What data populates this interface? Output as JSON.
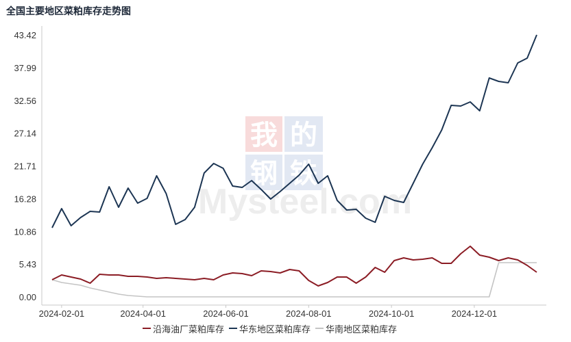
{
  "chart_data": {
    "type": "line",
    "title": "全国主要地区菜粕库存走势图",
    "xlabel": "",
    "ylabel": "",
    "ylim": [
      0,
      43.42
    ],
    "y_ticks": [
      "43.42",
      "37.99",
      "32.56",
      "27.14",
      "21.71",
      "16.28",
      "10.86",
      "5.43",
      "0.00"
    ],
    "x_tick_labels": [
      "2024-02-01",
      "2024-04-01",
      "2024-06-01",
      "2024-08-01",
      "2024-10-01",
      "2024-12-01"
    ],
    "grid": false,
    "legend_position": "bottom",
    "x": [
      "2024-01-25",
      "2024-02-01",
      "2024-02-08",
      "2024-02-15",
      "2024-02-22",
      "2024-02-29",
      "2024-03-07",
      "2024-03-14",
      "2024-03-21",
      "2024-03-28",
      "2024-04-04",
      "2024-04-11",
      "2024-04-18",
      "2024-04-25",
      "2024-05-02",
      "2024-05-09",
      "2024-05-16",
      "2024-05-23",
      "2024-05-30",
      "2024-06-06",
      "2024-06-13",
      "2024-06-20",
      "2024-06-27",
      "2024-07-04",
      "2024-07-11",
      "2024-07-18",
      "2024-07-25",
      "2024-08-01",
      "2024-08-08",
      "2024-08-15",
      "2024-08-22",
      "2024-08-29",
      "2024-09-05",
      "2024-09-12",
      "2024-09-19",
      "2024-09-26",
      "2024-10-03",
      "2024-10-10",
      "2024-10-17",
      "2024-10-24",
      "2024-10-31",
      "2024-11-07",
      "2024-11-14",
      "2024-11-21",
      "2024-11-28",
      "2024-12-05",
      "2024-12-12",
      "2024-12-19",
      "2024-12-26",
      "2025-01-02",
      "2025-01-09",
      "2025-01-16"
    ],
    "series": [
      {
        "name": "沿海油厂菜粕库存",
        "color": "#8b1c24",
        "values": [
          2.83,
          3.63,
          3.29,
          2.95,
          2.27,
          3.74,
          3.63,
          3.63,
          3.4,
          3.4,
          3.29,
          3.06,
          3.17,
          3.06,
          2.95,
          2.83,
          3.06,
          2.83,
          3.63,
          3.97,
          3.85,
          3.51,
          4.31,
          4.19,
          3.97,
          4.53,
          4.31,
          2.72,
          1.81,
          2.38,
          3.29,
          3.29,
          2.27,
          3.29,
          4.87,
          4.08,
          6.01,
          6.46,
          6.12,
          6.24,
          6.46,
          5.55,
          5.55,
          7.14,
          8.39,
          6.92,
          6.58,
          6.01,
          6.46,
          6.12,
          5.21,
          4.08
        ]
      },
      {
        "name": "华东地区菜粕库存",
        "color": "#1c3553",
        "values": [
          11.45,
          14.62,
          11.79,
          13.15,
          14.17,
          14.06,
          18.25,
          14.85,
          18.03,
          15.53,
          16.32,
          20.07,
          17.12,
          12.02,
          12.81,
          14.85,
          20.52,
          22.11,
          21.31,
          18.37,
          18.14,
          19.27,
          17.8,
          16.21,
          17.46,
          18.82,
          20.18,
          21.99,
          18.82,
          20.07,
          15.98,
          14.4,
          14.51,
          13.04,
          12.36,
          16.66,
          15.98,
          15.64,
          18.82,
          21.99,
          24.71,
          27.66,
          31.74,
          31.63,
          32.31,
          30.84,
          36.28,
          35.71,
          35.48,
          38.77,
          39.56,
          43.42
        ]
      },
      {
        "name": "华南地区菜粕库存",
        "color": "#c4c4c4",
        "values": [
          2.83,
          2.38,
          2.15,
          1.93,
          1.47,
          1.13,
          0.79,
          0.45,
          0.23,
          0.11,
          0,
          0,
          0,
          0,
          0,
          0,
          0,
          0,
          0,
          0,
          0,
          0,
          0,
          0,
          0,
          0,
          0,
          0,
          0,
          0,
          0,
          0,
          0,
          0,
          0,
          0,
          0,
          0,
          0,
          0,
          0,
          0,
          0,
          0,
          0,
          0,
          0,
          5.67,
          5.67,
          5.67,
          5.67,
          5.67
        ]
      }
    ]
  },
  "watermark": {
    "chars": [
      "我",
      "的",
      "钢",
      "铁"
    ],
    "text": "Mysteel.com"
  }
}
